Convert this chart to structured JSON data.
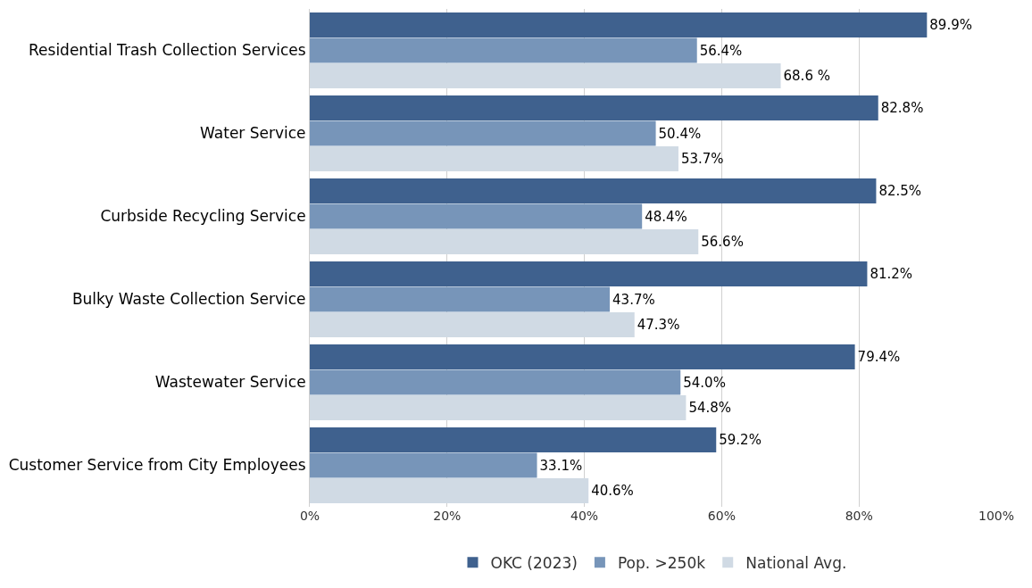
{
  "chart_data": {
    "type": "bar",
    "orientation": "horizontal",
    "categories": [
      "Residential Trash Collection Services",
      "Water Service",
      "Curbside Recycling Service",
      "Bulky Waste Collection Service",
      "Wastewater Service",
      "Customer Service from City Employees"
    ],
    "series": [
      {
        "name": "OKC (2023)",
        "color": "#3f618e",
        "values": [
          89.9,
          82.8,
          82.5,
          81.2,
          79.4,
          59.2
        ],
        "value_labels": [
          "89.9%",
          "82.8%",
          "82.5%",
          "81.2%",
          "79.4%",
          "59.2%"
        ]
      },
      {
        "name": "Pop. >250k",
        "color": "#7795b9",
        "values": [
          56.4,
          50.4,
          48.4,
          43.7,
          54.0,
          33.1
        ],
        "value_labels": [
          "56.4%",
          "50.4%",
          "48.4%",
          "43.7%",
          "54.0%",
          "33.1%"
        ]
      },
      {
        "name": "National Avg.",
        "color": "#d0dae4",
        "values": [
          68.6,
          53.7,
          56.6,
          47.3,
          54.8,
          40.6
        ],
        "value_labels": [
          "68.6 %",
          "53.7%",
          "56.6%",
          "47.3%",
          "54.8%",
          "40.6%"
        ]
      }
    ],
    "xlim": [
      0,
      100
    ],
    "xticks": [
      {
        "value": 0,
        "label": "0%"
      },
      {
        "value": 20,
        "label": "20%"
      },
      {
        "value": 40,
        "label": "40%"
      },
      {
        "value": 60,
        "label": "60%"
      },
      {
        "value": 80,
        "label": "80%"
      },
      {
        "value": 100,
        "label": "100%"
      }
    ],
    "grid": "x",
    "legend": "bottom"
  }
}
